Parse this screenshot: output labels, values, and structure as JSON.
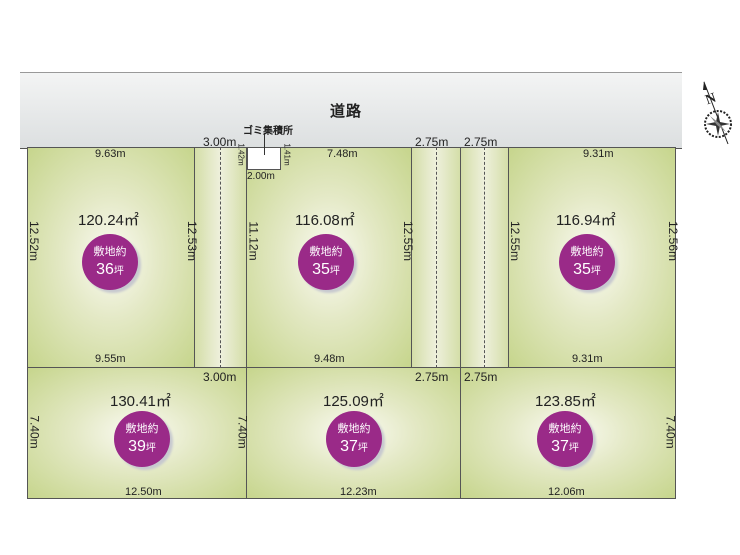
{
  "road": {
    "label": "道路"
  },
  "garbage": {
    "label": "ゴミ集積所",
    "width": "2.00m",
    "depth_left": "1.42m",
    "depth_right": "1.41m"
  },
  "strips": {
    "left_top": "3.00m",
    "left_bottom": "3.00m",
    "mid_top": "2.75m",
    "mid_bottom": "2.75m",
    "right_top": "2.75m",
    "right_bottom": "2.75m"
  },
  "compass": {
    "label": "N",
    "icon": "compass-rose-icon"
  },
  "lot_badge_label": "敷地約",
  "tsubo_unit": "坪",
  "lots": [
    {
      "area": "120.24㎡",
      "tsubo": "36",
      "top": "9.63m",
      "bottom": "9.55m",
      "left": "12.52m",
      "right": "12.53m"
    },
    {
      "area": "116.08㎡",
      "tsubo": "35",
      "top": "7.48m",
      "bottom": "9.48m",
      "left": "11.12m",
      "right": "12.55m"
    },
    {
      "area": "116.94㎡",
      "tsubo": "35",
      "top": "9.31m",
      "bottom": "9.31m",
      "left": "12.55m",
      "right": "12.56m"
    },
    {
      "area": "130.41㎡",
      "tsubo": "39",
      "bottom": "12.50m",
      "left": "7.40m",
      "right": "7.40m"
    },
    {
      "area": "125.09㎡",
      "tsubo": "37",
      "bottom": "12.23m",
      "right": "7.40m"
    },
    {
      "area": "123.85㎡",
      "tsubo": "37",
      "bottom": "12.06m",
      "right": "7.40m"
    }
  ],
  "colors": {
    "badge": "#9a2a88",
    "lot_green": "#c6d58c"
  }
}
